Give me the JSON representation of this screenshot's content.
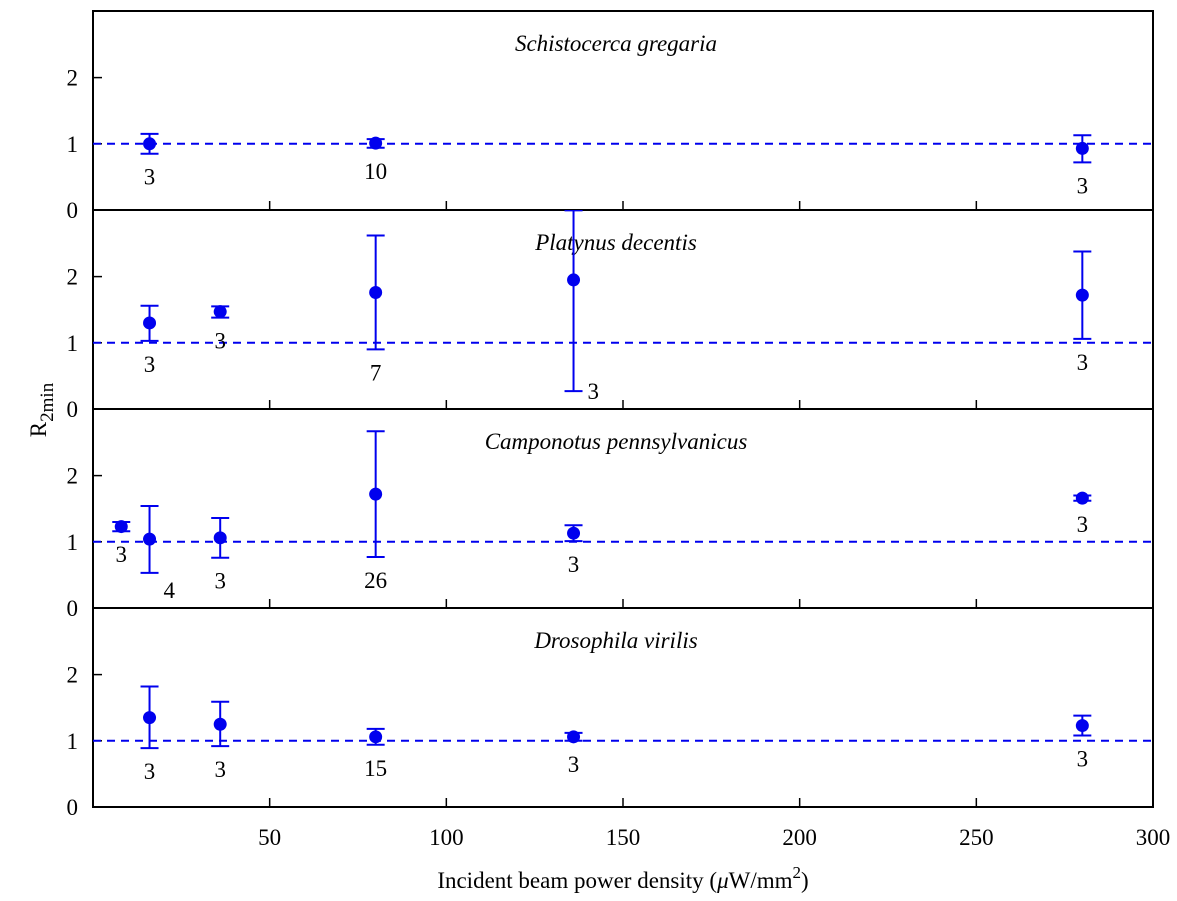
{
  "chart_data": {
    "type": "scatter",
    "xlabel_main": "Incident beam power density (",
    "xlabel_mu": "μ",
    "xlabel_unit": "W/mm",
    "xlabel_sup": "2",
    "xlabel_close": ")",
    "ylabel_main": "R",
    "ylabel_sub": "2min",
    "xlim": [
      0,
      300
    ],
    "ylim": [
      0,
      2.9
    ],
    "x_ticks": [
      50,
      100,
      150,
      200,
      250,
      300
    ],
    "x_tick_labels": [
      "50",
      "100",
      "150",
      "200",
      "250",
      "300"
    ],
    "y_ticks": [
      0,
      1,
      2
    ],
    "y_tick_labels": [
      "0",
      "1",
      "2"
    ],
    "reference_line_y": 1,
    "grid": false,
    "marker_color": "#0000ee",
    "panels": [
      {
        "title": "Schistocerca gregaria",
        "points": [
          {
            "x": 16,
            "y": 1.0,
            "err_low": 0.85,
            "err_high": 1.15,
            "n": "3"
          },
          {
            "x": 80,
            "y": 1.01,
            "err_low": 0.94,
            "err_high": 1.07,
            "n": "10"
          },
          {
            "x": 280,
            "y": 0.93,
            "err_low": 0.72,
            "err_high": 1.13,
            "n": "3"
          }
        ]
      },
      {
        "title": "Platynus decentis",
        "points": [
          {
            "x": 16,
            "y": 1.3,
            "err_low": 1.03,
            "err_high": 1.56,
            "n": "3"
          },
          {
            "x": 36,
            "y": 1.47,
            "err_low": 1.38,
            "err_high": 1.55,
            "n": "3"
          },
          {
            "x": 80,
            "y": 1.76,
            "err_low": 0.9,
            "err_high": 2.62,
            "n": "7"
          },
          {
            "x": 136,
            "y": 1.95,
            "err_low": 0.27,
            "err_high": 3.0,
            "n": "3"
          },
          {
            "x": 280,
            "y": 1.72,
            "err_low": 1.06,
            "err_high": 2.38,
            "n": "3"
          }
        ]
      },
      {
        "title": "Camponotus pennsylvanicus",
        "points": [
          {
            "x": 8,
            "y": 1.23,
            "err_low": 1.16,
            "err_high": 1.3,
            "n": "3"
          },
          {
            "x": 16,
            "y": 1.04,
            "err_low": 0.53,
            "err_high": 1.54,
            "n": "4"
          },
          {
            "x": 36,
            "y": 1.06,
            "err_low": 0.76,
            "err_high": 1.36,
            "n": "3"
          },
          {
            "x": 80,
            "y": 1.72,
            "err_low": 0.77,
            "err_high": 2.67,
            "n": "26"
          },
          {
            "x": 136,
            "y": 1.13,
            "err_low": 1.01,
            "err_high": 1.25,
            "n": "3"
          },
          {
            "x": 280,
            "y": 1.66,
            "err_low": 1.62,
            "err_high": 1.7,
            "n": "3"
          }
        ]
      },
      {
        "title": "Drosophila virilis",
        "points": [
          {
            "x": 16,
            "y": 1.35,
            "err_low": 0.89,
            "err_high": 1.82,
            "n": "3"
          },
          {
            "x": 36,
            "y": 1.25,
            "err_low": 0.92,
            "err_high": 1.59,
            "n": "3"
          },
          {
            "x": 80,
            "y": 1.06,
            "err_low": 0.94,
            "err_high": 1.18,
            "n": "15"
          },
          {
            "x": 136,
            "y": 1.06,
            "err_low": 1.0,
            "err_high": 1.12,
            "n": "3"
          },
          {
            "x": 280,
            "y": 1.23,
            "err_low": 1.08,
            "err_high": 1.38,
            "n": "3"
          }
        ]
      }
    ]
  }
}
